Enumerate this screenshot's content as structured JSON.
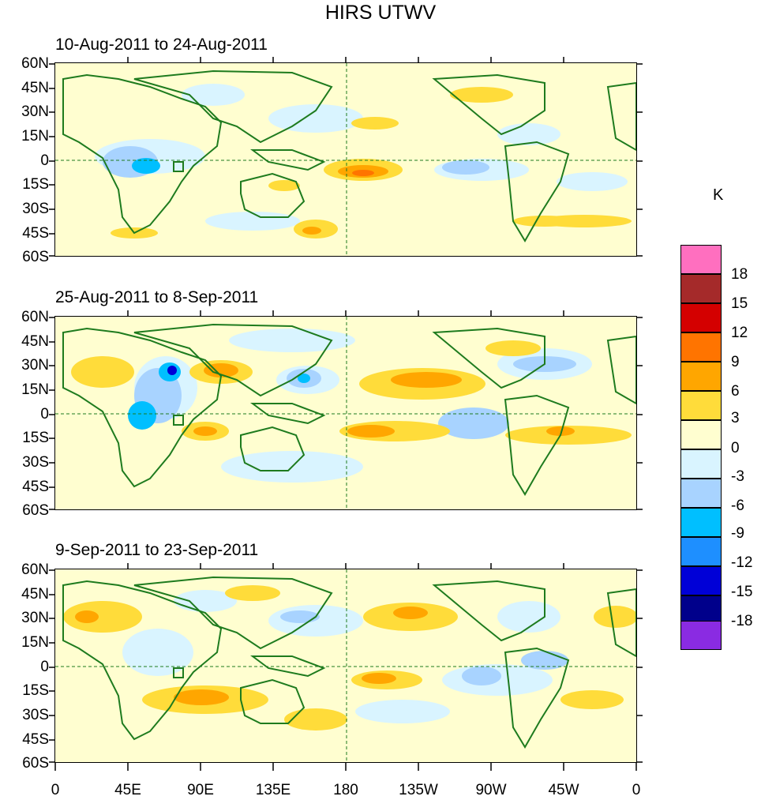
{
  "title": "HIRS UTWV",
  "panels": [
    {
      "label": "10-Aug-2011 to 24-Aug-2011"
    },
    {
      "label": "25-Aug-2011 to 8-Sep-2011"
    },
    {
      "label": "9-Sep-2011 to 23-Sep-2011"
    }
  ],
  "lat_labels": [
    "60N",
    "45N",
    "30N",
    "15N",
    "0",
    "15S",
    "30S",
    "45S",
    "60S"
  ],
  "lon_labels": [
    "0",
    "45E",
    "90E",
    "135E",
    "180",
    "135W",
    "90W",
    "45W",
    "0"
  ],
  "colorbar": {
    "unit": "K",
    "levels": [
      "18",
      "15",
      "12",
      "9",
      "6",
      "3",
      "0",
      "-3",
      "-6",
      "-9",
      "-12",
      "-15",
      "-18"
    ],
    "colors": [
      "#ff6fbf",
      "#a52a2a",
      "#d40000",
      "#ff7400",
      "#ffa600",
      "#ffdc3a",
      "#fffed0",
      "#d9f4ff",
      "#a8d3ff",
      "#00bfff",
      "#1e8fff",
      "#0000d7",
      "#00008b",
      "#8a2be2"
    ]
  }
}
